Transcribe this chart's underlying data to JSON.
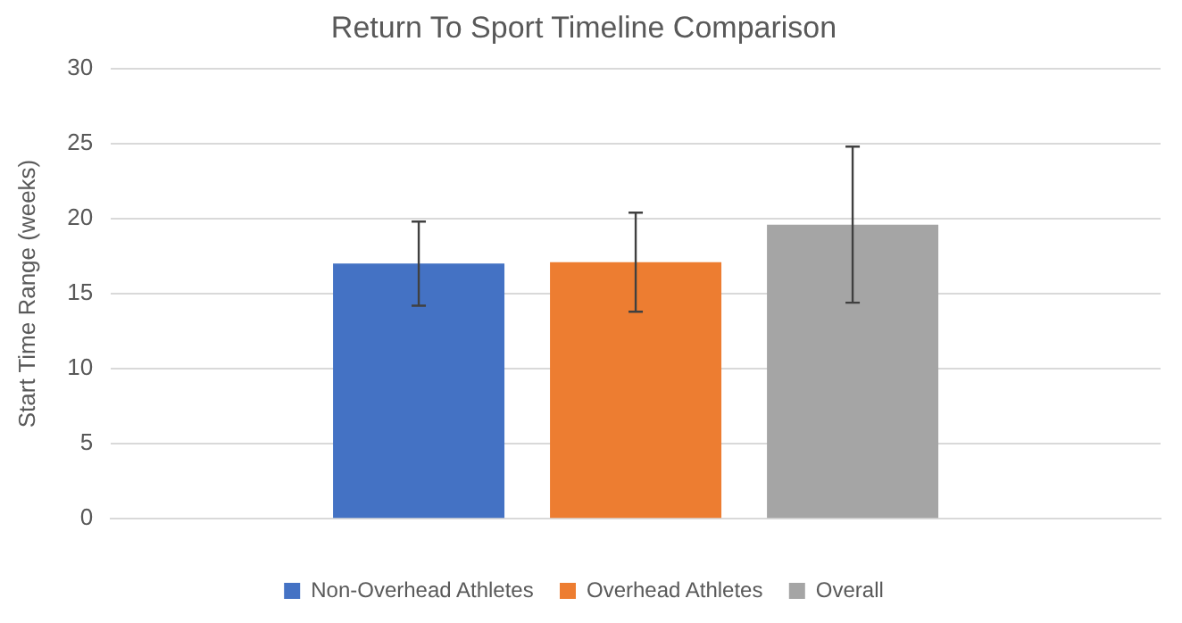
{
  "chart_data": {
    "type": "bar",
    "title": "Return To Sport Timeline Comparison",
    "ylabel": "Start Time Range (weeks)",
    "categories": [
      null
    ],
    "series": [
      {
        "name": "Non-Overhead Athletes",
        "color": "#4472c4",
        "values": [
          17.0
        ],
        "errors": [
          [
            14.2,
            19.8
          ]
        ]
      },
      {
        "name": "Overhead Athletes",
        "color": "#ed7d31",
        "values": [
          17.1
        ],
        "errors": [
          [
            13.8,
            20.4
          ]
        ]
      },
      {
        "name": "Overall",
        "color": "#a5a5a5",
        "values": [
          19.6
        ],
        "errors": [
          [
            14.4,
            24.8
          ]
        ]
      }
    ],
    "ylim": [
      0,
      30
    ],
    "yticks": [
      0,
      5,
      10,
      15,
      20,
      25,
      30
    ],
    "grid": "y",
    "legend": "bottom"
  }
}
